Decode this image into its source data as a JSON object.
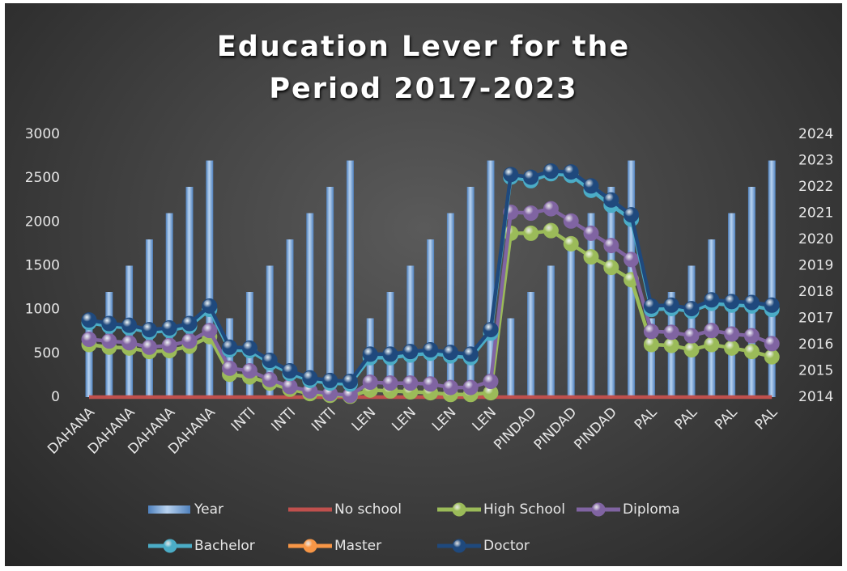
{
  "chart_data": {
    "type": "line",
    "title": "Education Lever for the Period 2017-2023",
    "categories": [
      "DAHANA",
      null,
      "DAHANA",
      null,
      "DAHANA",
      null,
      "DAHANA",
      null,
      "INTI",
      null,
      "INTI",
      null,
      "INTI",
      null,
      "LEN",
      null,
      "LEN",
      null,
      "LEN",
      null,
      "LEN",
      null,
      "PINDAD",
      null,
      "PINDAD",
      null,
      "PINDAD",
      null,
      "PAL",
      null,
      "PAL",
      null,
      "PAL",
      null,
      "PAL"
    ],
    "ylim": [
      0,
      3000
    ],
    "yticks": [
      0,
      500,
      1000,
      1500,
      2000,
      2500,
      3000
    ],
    "y2lim": [
      2014,
      2024
    ],
    "y2ticks": [
      2014,
      2015,
      2016,
      2017,
      2018,
      2019,
      2020,
      2021,
      2022,
      2023,
      2024
    ],
    "grid": false,
    "legend": "bottom",
    "series": [
      {
        "name": "Year",
        "type": "bar",
        "axis": "y2",
        "color": "#4f81bd",
        "values": [
          2017,
          2018,
          2019,
          2020,
          2021,
          2022,
          2023,
          2017,
          2018,
          2019,
          2020,
          2021,
          2022,
          2023,
          2017,
          2018,
          2019,
          2020,
          2021,
          2022,
          2023,
          2017,
          2018,
          2019,
          2020,
          2021,
          2022,
          2023,
          2017,
          2018,
          2019,
          2020,
          2021,
          2022,
          2023
        ]
      },
      {
        "name": "No school",
        "color": "#c0504d",
        "markers": false,
        "values": [
          0,
          0,
          0,
          0,
          0,
          0,
          0,
          0,
          0,
          0,
          0,
          0,
          0,
          0,
          0,
          0,
          0,
          0,
          0,
          0,
          0,
          0,
          0,
          0,
          0,
          0,
          0,
          0,
          0,
          0,
          0,
          0,
          0,
          0,
          0
        ]
      },
      {
        "name": "High School",
        "color": "#9bbb59",
        "markers": true,
        "values": [
          600,
          570,
          560,
          520,
          530,
          580,
          690,
          260,
          230,
          160,
          90,
          40,
          20,
          10,
          80,
          70,
          60,
          50,
          30,
          30,
          50,
          1870,
          1870,
          1900,
          1750,
          1600,
          1480,
          1340,
          600,
          590,
          540,
          600,
          560,
          520,
          460
        ]
      },
      {
        "name": "Diploma",
        "color": "#8064a2",
        "markers": true,
        "values": [
          660,
          640,
          620,
          570,
          590,
          640,
          760,
          330,
          300,
          200,
          120,
          70,
          40,
          20,
          170,
          160,
          160,
          150,
          110,
          110,
          180,
          2110,
          2100,
          2150,
          2010,
          1870,
          1730,
          1570,
          750,
          740,
          700,
          760,
          720,
          700,
          610
        ]
      },
      {
        "name": "Bachelor",
        "color": "#4bacc6",
        "markers": true,
        "values": [
          850,
          810,
          790,
          740,
          760,
          810,
          1000,
          540,
          530,
          390,
          270,
          190,
          160,
          150,
          450,
          450,
          480,
          500,
          470,
          450,
          730,
          2510,
          2470,
          2550,
          2530,
          2360,
          2190,
          2030,
          1000,
          1010,
          980,
          1070,
          1050,
          1040,
          1000
        ]
      },
      {
        "name": "Master",
        "color": "#f79646",
        "markers": true,
        "values": [
          null,
          null,
          null,
          null,
          null,
          null,
          null,
          null,
          null,
          null,
          null,
          null,
          null,
          null,
          null,
          null,
          null,
          null,
          null,
          null,
          null,
          null,
          null,
          null,
          null,
          null,
          null,
          null,
          null,
          null,
          null,
          null,
          null,
          null,
          null
        ]
      },
      {
        "name": "Doctor",
        "color": "#1f497d",
        "markers": true,
        "values": [
          880,
          840,
          820,
          770,
          790,
          840,
          1040,
          570,
          560,
          420,
          300,
          220,
          190,
          180,
          490,
          490,
          520,
          540,
          510,
          490,
          770,
          2540,
          2510,
          2580,
          2570,
          2410,
          2250,
          2080,
          1040,
          1050,
          1010,
          1110,
          1090,
          1080,
          1050
        ]
      }
    ]
  }
}
